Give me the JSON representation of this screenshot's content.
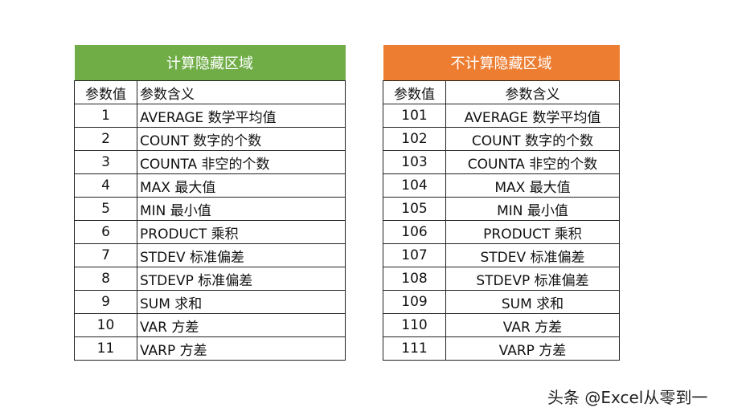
{
  "left_table": {
    "title": "计算隐藏区域",
    "header": [
      "参数值",
      "参数含义"
    ],
    "rows": [
      [
        "1",
        "AVERAGE 数学平均值"
      ],
      [
        "2",
        "COUNT 数字的个数"
      ],
      [
        "3",
        "COUNTA 非空的个数"
      ],
      [
        "4",
        "MAX 最大值"
      ],
      [
        "5",
        "MIN 最小值"
      ],
      [
        "6",
        "PRODUCT 乘积"
      ],
      [
        "7",
        "STDEV 标准偏差"
      ],
      [
        "8",
        "STDEVP 标准偏差"
      ],
      [
        "9",
        "SUM 求和"
      ],
      [
        "10",
        "VAR 方差"
      ],
      [
        "11",
        "VARP 方差"
      ]
    ],
    "header_color": "#70ad47"
  },
  "right_table": {
    "title": "不计算隐藏区域",
    "header": [
      "参数值",
      "参数含义"
    ],
    "rows": [
      [
        "101",
        "AVERAGE 数学平均值"
      ],
      [
        "102",
        "COUNT 数字的个数"
      ],
      [
        "103",
        "COUNTA 非空的个数"
      ],
      [
        "104",
        "MAX 最大值"
      ],
      [
        "105",
        "MIN 最小值"
      ],
      [
        "106",
        "PRODUCT 乘积"
      ],
      [
        "107",
        "STDEV 标准偏差"
      ],
      [
        "108",
        "STDEVP 标准偏差"
      ],
      [
        "109",
        "SUM 求和"
      ],
      [
        "110",
        "VAR 方差"
      ],
      [
        "111",
        "VARP 方差"
      ]
    ],
    "header_color": "#ed7d31"
  },
  "watermark": "头条 @Excel从零到一"
}
